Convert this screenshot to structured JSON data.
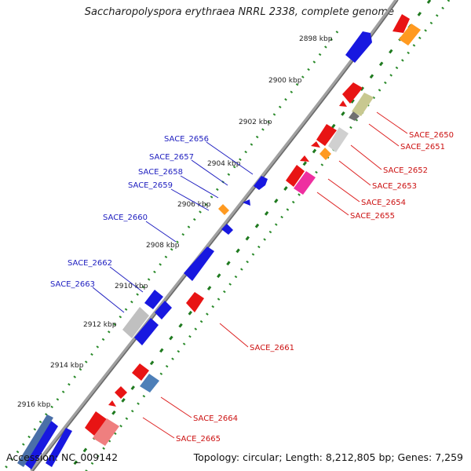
{
  "title": "Saccharopolyspora erythraea NRRL 2338, complete genome",
  "accession": "Accession: NC_009142",
  "summary": "Topology: circular; Length: 8,212,805 bp; Genes: 7,259",
  "colors": {
    "backbone": "#808080",
    "ticks": "#2a8a2a",
    "forward": "#1010e0",
    "reverse": "#e01010",
    "forward_label": "#2020c0",
    "reverse_label": "#cc1111"
  },
  "kbp_labels": [
    "2898 kbp",
    "2900 kbp",
    "2902 kbp",
    "2904 kbp",
    "2906 kbp",
    "2908 kbp",
    "2910 kbp",
    "2912 kbp",
    "2914 kbp",
    "2916 kbp"
  ],
  "forward_labels": [
    "SACE_2656",
    "SACE_2657",
    "SACE_2658",
    "SACE_2659",
    "SACE_2660",
    "SACE_2662",
    "SACE_2663"
  ],
  "reverse_labels": [
    "SACE_2650",
    "SACE_2651",
    "SACE_2652",
    "SACE_2653",
    "SACE_2654",
    "SACE_2655",
    "SACE_2661",
    "SACE_2664",
    "SACE_2665"
  ]
}
